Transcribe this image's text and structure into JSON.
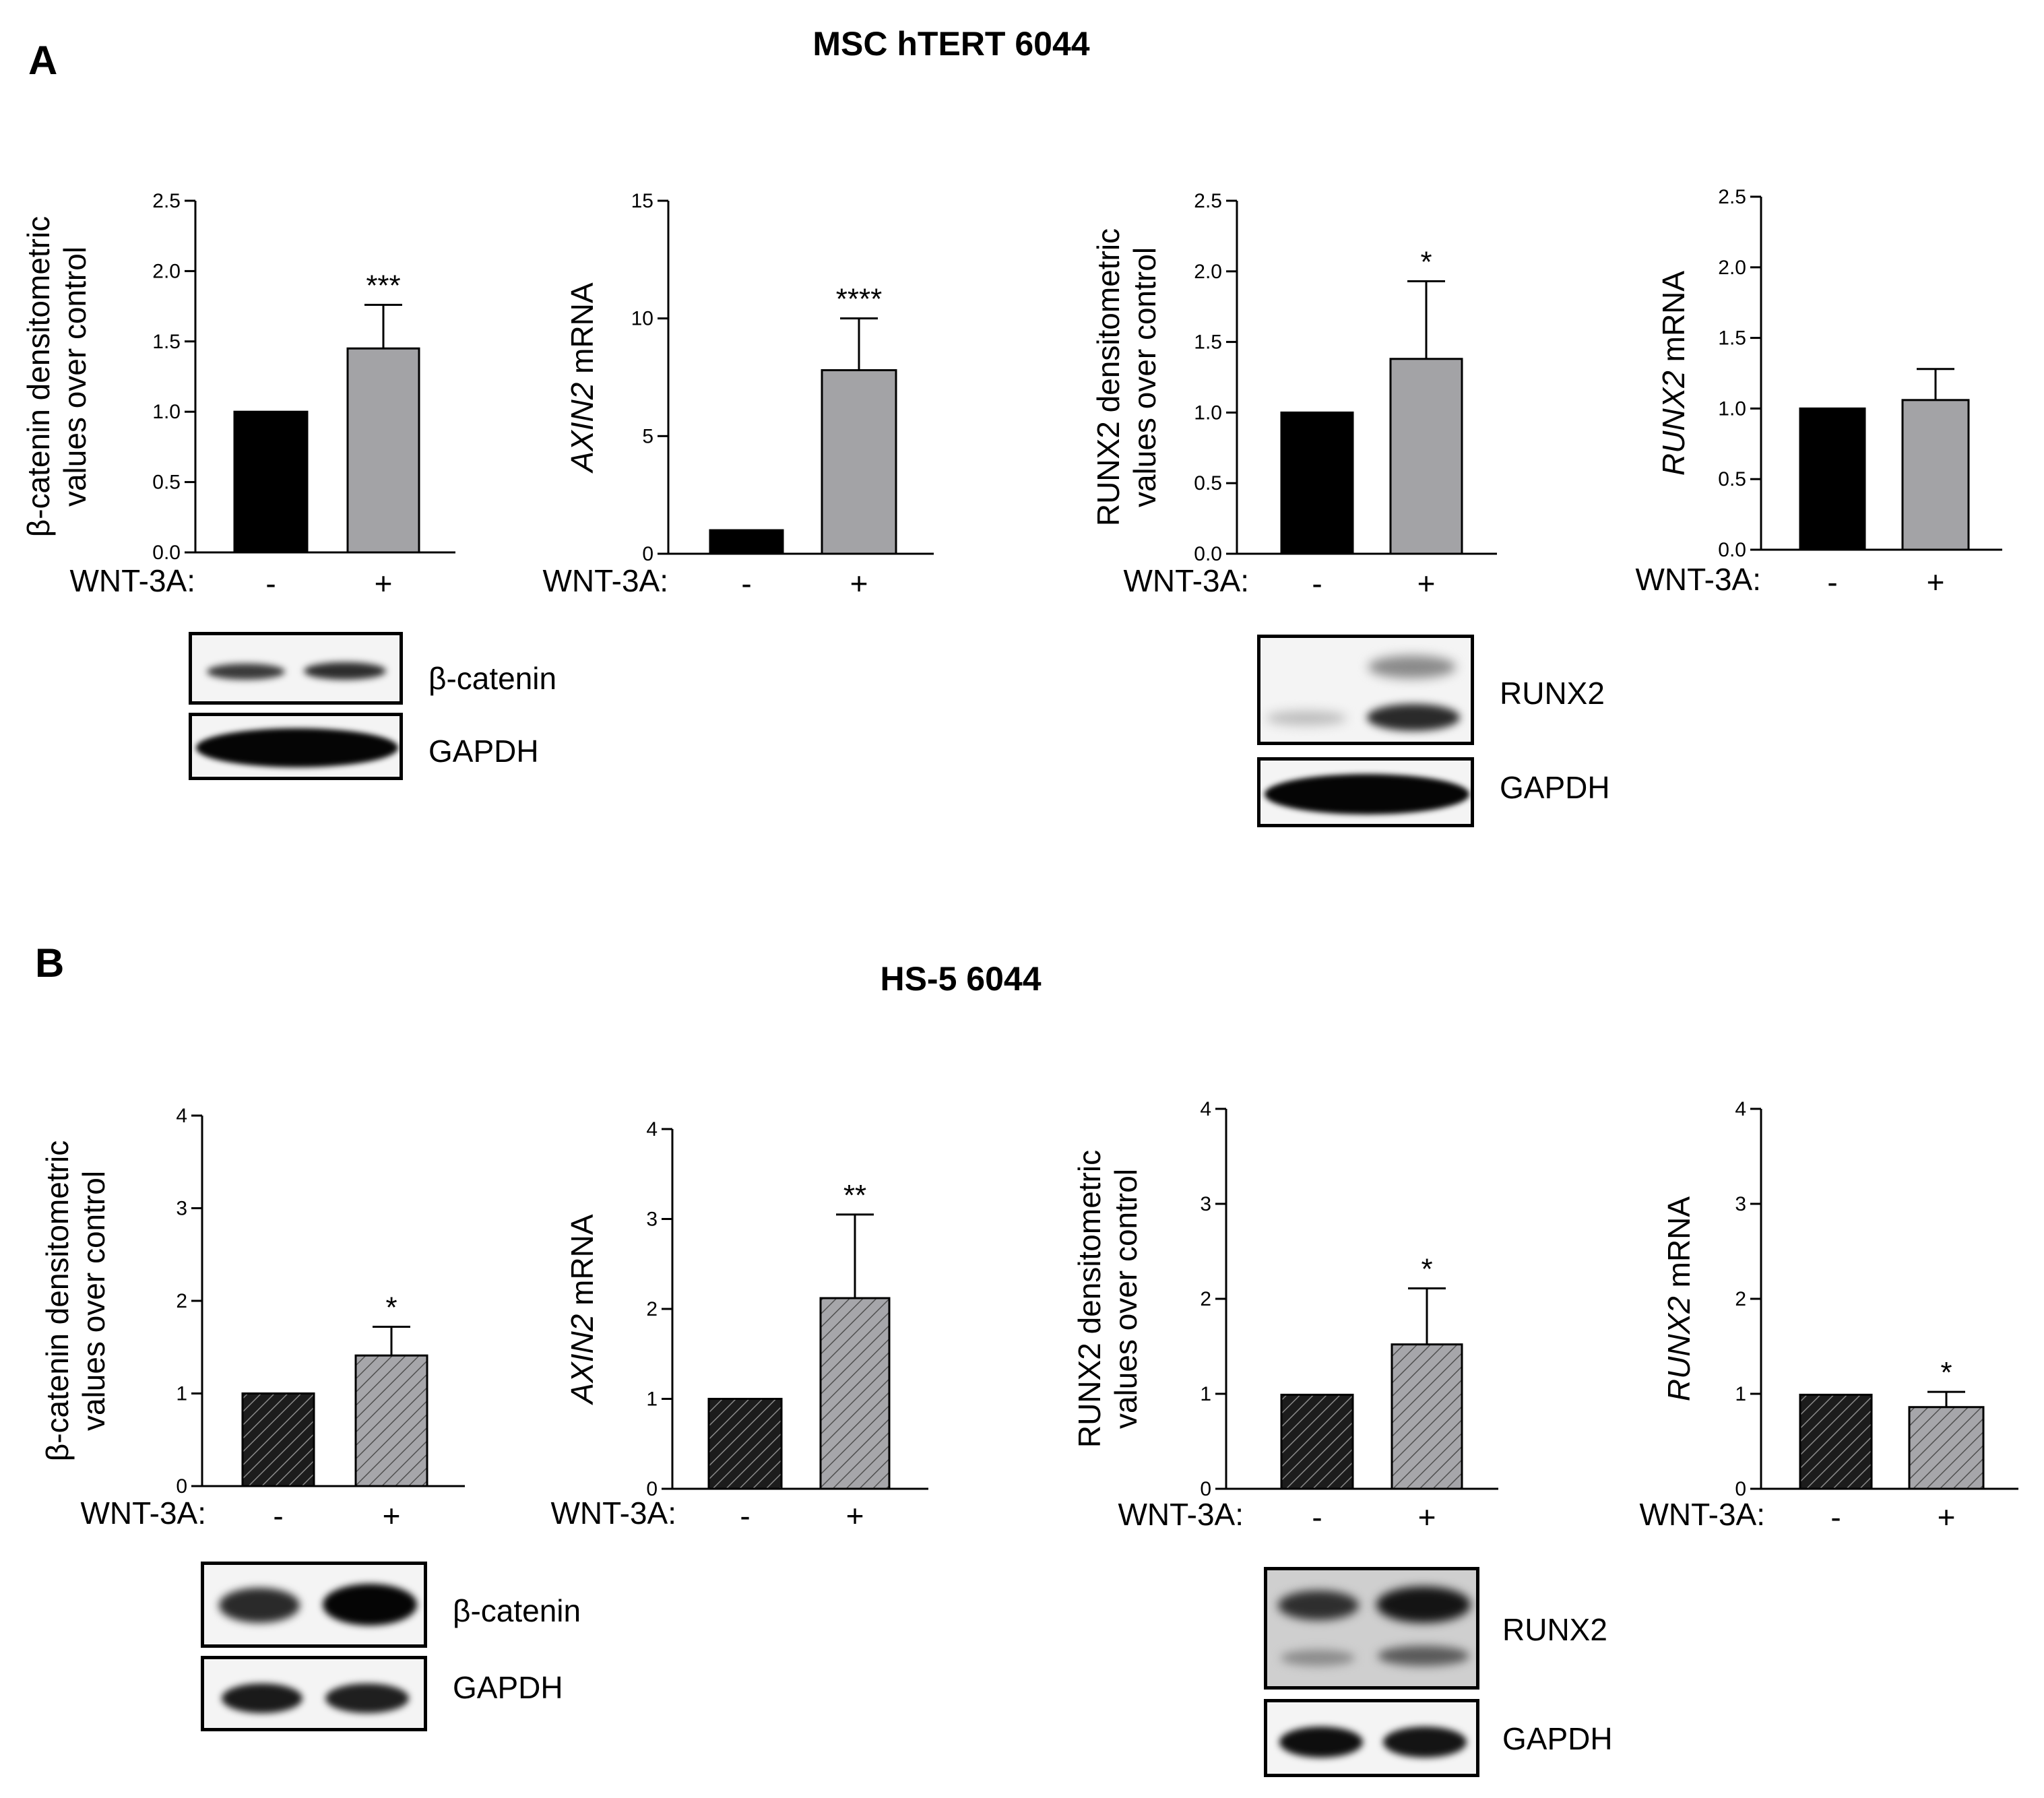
{
  "panels": [
    {
      "letter": "A",
      "title": "MSC hTERT 6044",
      "hatched": false,
      "charts": [
        {
          "ylabel_lines": [
            "β-catenin densitometric",
            "values over control"
          ],
          "ylabel_italic_prefix": "",
          "ylim": [
            0,
            2.5
          ],
          "ticks": [
            "0.0",
            "0.5",
            "1.0",
            "1.5",
            "2.0",
            "2.5"
          ]
        },
        {
          "ylabel_lines": [
            " mRNA"
          ],
          "ylabel_italic_prefix": "AXIN2",
          "ylim": [
            0,
            15
          ],
          "ticks": [
            "0",
            "5",
            "10",
            "15"
          ]
        },
        {
          "ylabel_lines": [
            "RUNX2 densitometric",
            "values over control"
          ],
          "ylabel_italic_prefix": "",
          "ylim": [
            0,
            2.5
          ],
          "ticks": [
            "0.0",
            "0.5",
            "1.0",
            "1.5",
            "2.0",
            "2.5"
          ]
        },
        {
          "ylabel_lines": [
            " mRNA"
          ],
          "ylabel_italic_prefix": "RUNX2",
          "ylim": [
            0,
            2.5
          ],
          "ticks": [
            "0.0",
            "0.5",
            "1.0",
            "1.5",
            "2.0",
            "2.5"
          ]
        }
      ],
      "blots": [
        {
          "rows": [
            {
              "label": "β-catenin"
            },
            {
              "label": "GAPDH"
            }
          ]
        },
        {
          "rows": [
            {
              "label": "RUNX2"
            },
            {
              "label": "GAPDH"
            }
          ]
        }
      ]
    },
    {
      "letter": "B",
      "title": "HS-5 6044",
      "hatched": true,
      "charts": [
        {
          "ylabel_lines": [
            "β-catenin densitometric",
            "values over control"
          ],
          "ylabel_italic_prefix": "",
          "ylim": [
            0,
            4
          ],
          "ticks": [
            "0",
            "1",
            "2",
            "3",
            "4"
          ]
        },
        {
          "ylabel_lines": [
            " mRNA"
          ],
          "ylabel_italic_prefix": "AXIN2",
          "ylim": [
            0,
            4
          ],
          "ticks": [
            "0",
            "1",
            "2",
            "3",
            "4"
          ]
        },
        {
          "ylabel_lines": [
            "RUNX2 densitometric",
            "values over control"
          ],
          "ylabel_italic_prefix": "",
          "ylim": [
            0,
            4
          ],
          "ticks": [
            "0",
            "1",
            "2",
            "3",
            "4"
          ]
        },
        {
          "ylabel_lines": [
            " mRNA"
          ],
          "ylabel_italic_prefix": "RUNX2",
          "ylim": [
            0,
            4
          ],
          "ticks": [
            "0",
            "1",
            "2",
            "3",
            "4"
          ]
        }
      ],
      "blots": [
        {
          "rows": [
            {
              "label": "β-catenin"
            },
            {
              "label": "GAPDH"
            }
          ]
        },
        {
          "rows": [
            {
              "label": "RUNX2"
            },
            {
              "label": "GAPDH"
            }
          ]
        }
      ]
    }
  ],
  "xaxis": {
    "label": "WNT-3A:",
    "categories": [
      "-",
      "+"
    ]
  },
  "colors": {
    "control": "#000000",
    "treated": "#a3a3a6"
  },
  "chart_data": [
    {
      "type": "bar",
      "categories": [
        "-",
        "+"
      ],
      "values": [
        1.0,
        1.45
      ],
      "error": [
        0,
        0.31
      ],
      "significance": "***",
      "ylabel": "β-catenin densitometric values over control",
      "xlabel": "WNT-3A:",
      "ylim": [
        0,
        2.5
      ]
    },
    {
      "type": "bar",
      "categories": [
        "-",
        "+"
      ],
      "values": [
        1.0,
        7.8
      ],
      "error": [
        0,
        2.2
      ],
      "significance": "****",
      "ylabel": "AXIN2 mRNA",
      "xlabel": "WNT-3A:",
      "ylim": [
        0,
        15
      ]
    },
    {
      "type": "bar",
      "categories": [
        "-",
        "+"
      ],
      "values": [
        1.0,
        1.38
      ],
      "error": [
        0,
        0.55
      ],
      "significance": "*",
      "ylabel": "RUNX2 densitometric values over control",
      "xlabel": "WNT-3A:",
      "ylim": [
        0,
        2.5
      ]
    },
    {
      "type": "bar",
      "categories": [
        "-",
        "+"
      ],
      "values": [
        1.0,
        1.06
      ],
      "error": [
        0,
        0.22
      ],
      "significance": "",
      "ylabel": "RUNX2 mRNA",
      "xlabel": "WNT-3A:",
      "ylim": [
        0,
        2.5
      ]
    },
    {
      "type": "bar",
      "categories": [
        "-",
        "+"
      ],
      "values": [
        1.0,
        1.41
      ],
      "error": [
        0,
        0.31
      ],
      "significance": "*",
      "ylabel": "β-catenin densitometric values over control",
      "xlabel": "WNT-3A:",
      "ylim": [
        0,
        4
      ]
    },
    {
      "type": "bar",
      "categories": [
        "-",
        "+"
      ],
      "values": [
        1.0,
        2.12
      ],
      "error": [
        0,
        0.93
      ],
      "significance": "**",
      "ylabel": "AXIN2 mRNA",
      "xlabel": "WNT-3A:",
      "ylim": [
        0,
        4
      ]
    },
    {
      "type": "bar",
      "categories": [
        "-",
        "+"
      ],
      "values": [
        0.99,
        1.52
      ],
      "error": [
        0,
        0.59
      ],
      "significance": "*",
      "ylabel": "RUNX2 densitometric values over control",
      "xlabel": "WNT-3A:",
      "ylim": [
        0,
        4
      ]
    },
    {
      "type": "bar",
      "categories": [
        "-",
        "+"
      ],
      "values": [
        0.99,
        0.86
      ],
      "error": [
        0,
        0.16
      ],
      "significance": "*",
      "ylabel": "RUNX2 mRNA",
      "xlabel": "WNT-3A:",
      "ylim": [
        0,
        4
      ]
    }
  ]
}
